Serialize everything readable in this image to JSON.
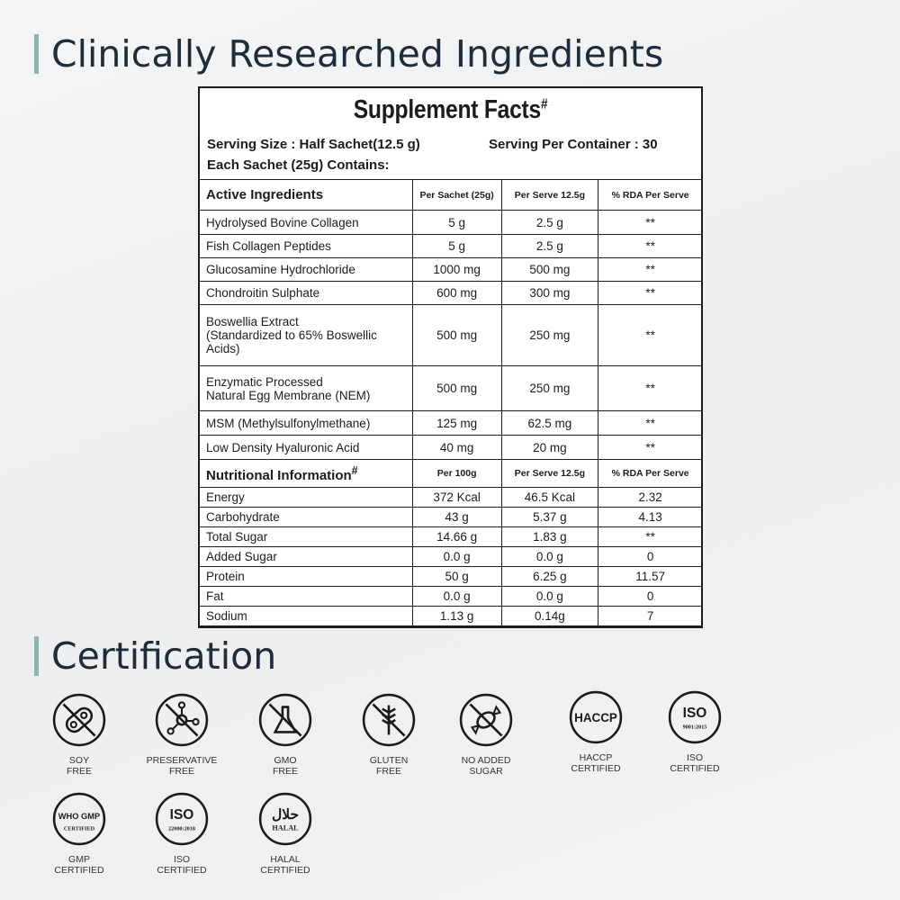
{
  "headings": {
    "ingredients": "Clinically Researched Ingredients",
    "certification": "Certification"
  },
  "facts": {
    "title": "Supplement Facts",
    "title_mark": "#",
    "serving_size": "Serving Size : Half Sachet(12.5 g)",
    "servings_per_container": "Serving Per Container : 30",
    "each_sachet": "Each Sachet (25g) Contains:",
    "active_header": [
      "Active Ingredients",
      "Per Sachet (25g)",
      "Per Serve 12.5g",
      "% RDA Per Serve"
    ],
    "active": [
      [
        "Hydrolysed Bovine Collagen",
        "5 g",
        "2.5 g",
        "**"
      ],
      [
        "Fish Collagen Peptides",
        "5 g",
        "2.5 g",
        "**"
      ],
      [
        "Glucosamine Hydrochloride",
        "1000 mg",
        "500 mg",
        "**"
      ],
      [
        "Chondroitin Sulphate",
        "600 mg",
        "300 mg",
        "**"
      ],
      [
        "Boswellia Extract\n(Standardized to 65% Boswellic\nAcids)",
        "500 mg",
        "250 mg",
        "**"
      ],
      [
        "Enzymatic Processed\nNatural Egg Membrane (NEM)",
        "500 mg",
        "250 mg",
        "**"
      ],
      [
        "MSM (Methylsulfonylmethane)",
        "125 mg",
        "62.5 mg",
        "**"
      ],
      [
        "Low Density Hyaluronic Acid",
        "40 mg",
        "20 mg",
        "**"
      ]
    ],
    "nutrition_header": [
      "Nutritional Information",
      "Per 100g",
      "Per Serve 12.5g",
      "% RDA Per Serve"
    ],
    "nutrition_mark": "#",
    "nutrition": [
      [
        "Energy",
        "372 Kcal",
        "46.5 Kcal",
        "2.32"
      ],
      [
        "Carbohydrate",
        "43 g",
        "5.37 g",
        "4.13"
      ],
      [
        "Total Sugar",
        "14.66 g",
        "1.83 g",
        "**"
      ],
      [
        "Added Sugar",
        "0.0 g",
        "0.0 g",
        "0"
      ],
      [
        "Protein",
        "50 g",
        "6.25 g",
        "11.57"
      ],
      [
        "Fat",
        "0.0 g",
        "0.0 g",
        "0"
      ],
      [
        "Sodium",
        "1.13 g",
        "0.14g",
        "7"
      ]
    ]
  },
  "certifications": [
    {
      "icon": "soy-free-icon",
      "glyph": "soy",
      "label": [
        "SOY",
        "FREE"
      ]
    },
    {
      "icon": "preservative-free-icon",
      "glyph": "mol",
      "label": [
        "PRESERVATIVE",
        "FREE"
      ]
    },
    {
      "icon": "gmo-free-icon",
      "glyph": "flask",
      "label": [
        "GMO",
        "FREE"
      ]
    },
    {
      "icon": "gluten-free-icon",
      "glyph": "wheat",
      "label": [
        "GLUTEN",
        "FREE"
      ]
    },
    {
      "icon": "no-added-sugar-icon",
      "glyph": "candy",
      "label": [
        "NO ADDED",
        "SUGAR"
      ]
    },
    {
      "icon": "haccp-icon",
      "glyph": "HACCP",
      "label": [
        "HACCP",
        "CERTIFIED"
      ]
    },
    {
      "icon": "iso-9001-icon",
      "glyph": "ISO",
      "sub": "9001:2015",
      "label": [
        "ISO",
        "CERTIFIED"
      ]
    },
    {
      "icon": "gmp-icon",
      "glyph": "WHO GMP",
      "sub": "CERTIFIED",
      "label": [
        "GMP",
        "CERTIFIED"
      ]
    },
    {
      "icon": "iso-22000-icon",
      "glyph": "ISO",
      "sub": "22000:2018",
      "label": [
        "ISO",
        "CERTIFIED"
      ]
    },
    {
      "icon": "halal-icon",
      "glyph": "حلال",
      "sub": "HALAL",
      "label": [
        "HALAL",
        "CERTIFIED"
      ]
    }
  ]
}
